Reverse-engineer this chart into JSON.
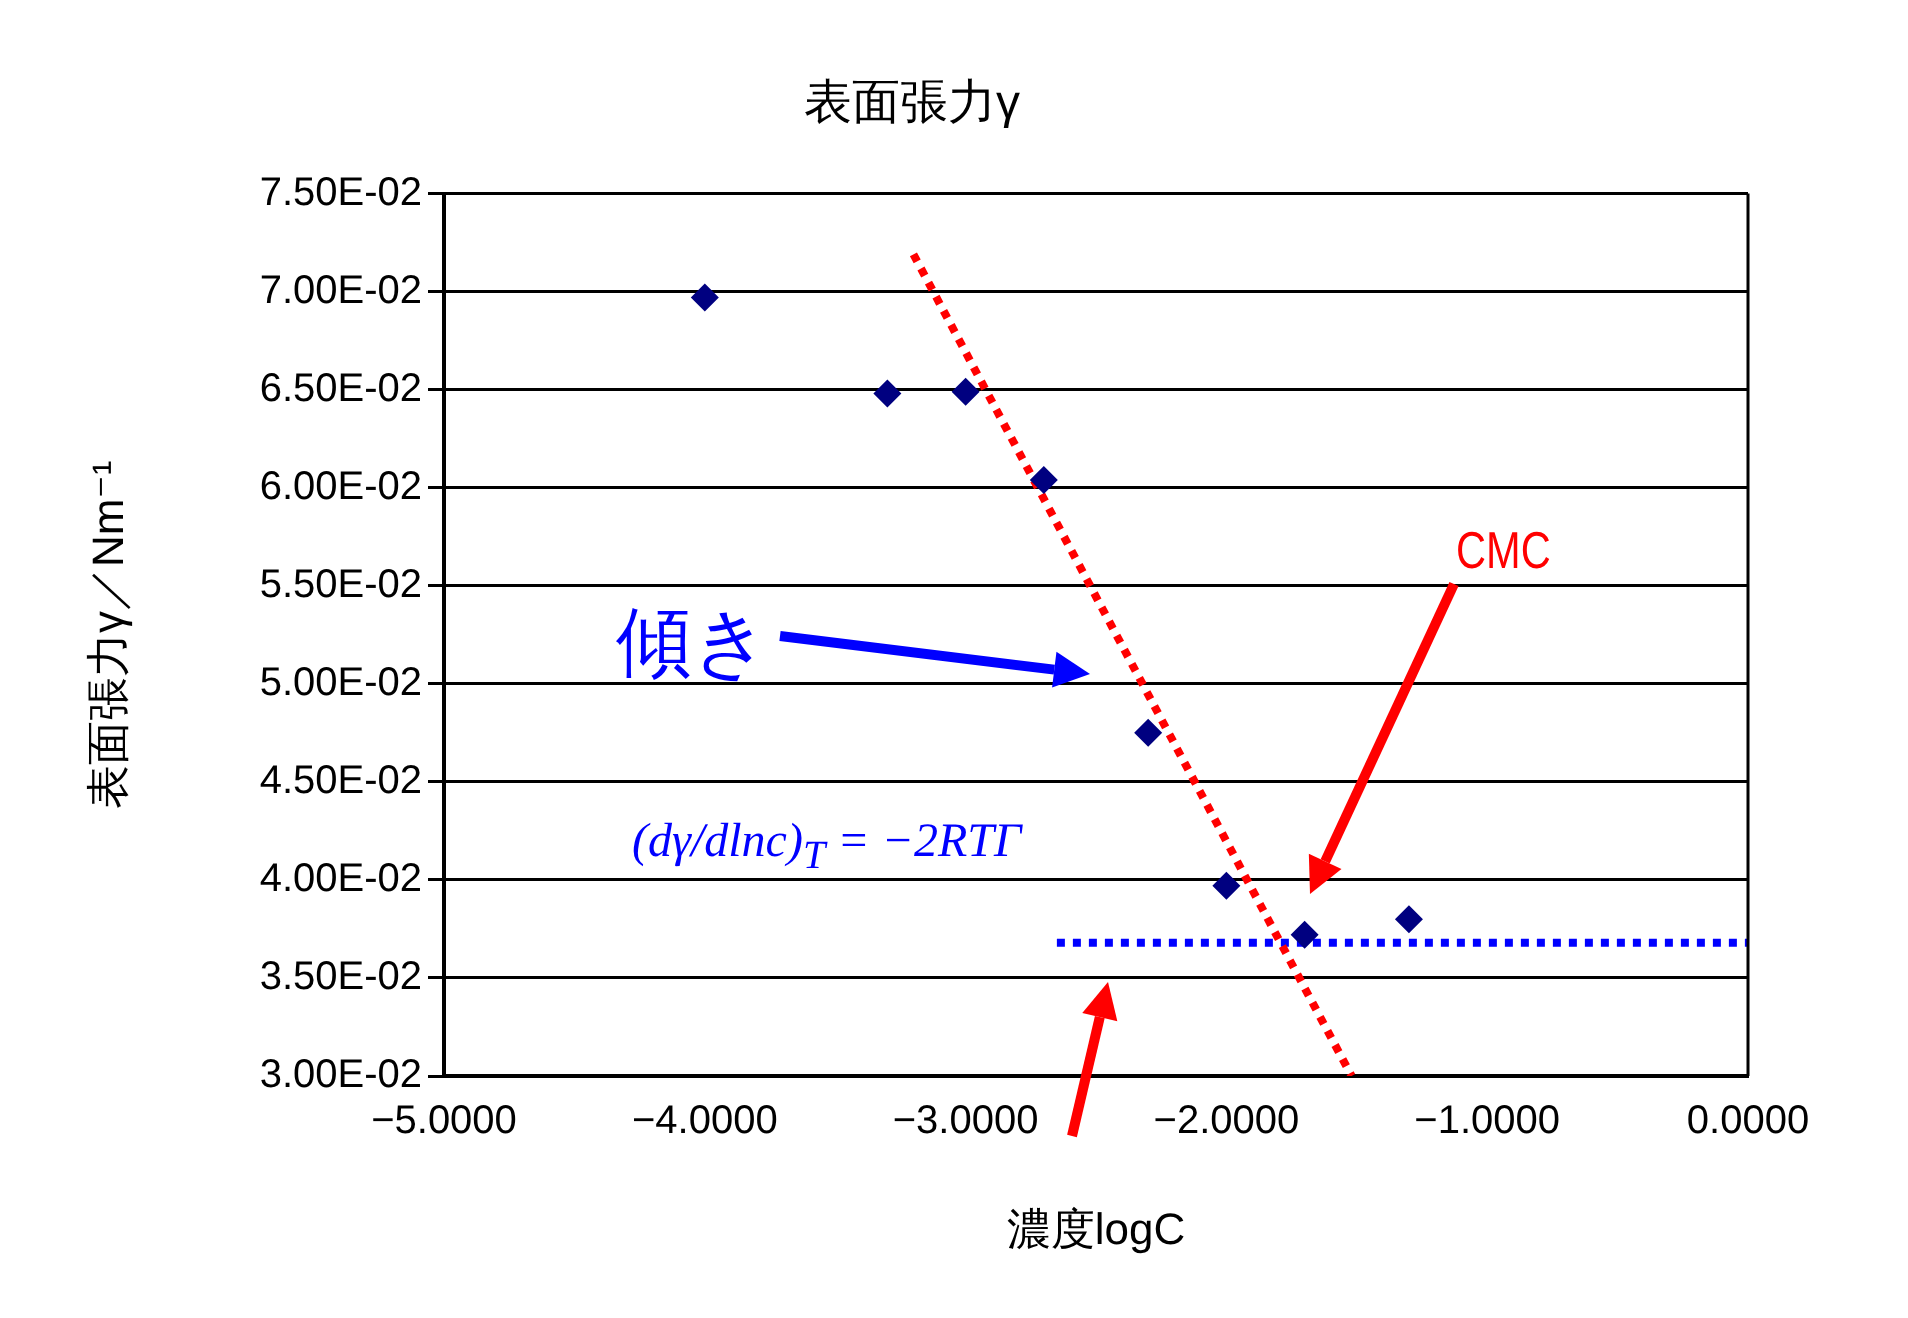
{
  "chart_data": {
    "type": "scatter",
    "title": "表面張力γ",
    "xlabel": "濃度logC",
    "ylabel": "表面張力γ／Nm⁻¹",
    "xlim": [
      -5,
      0
    ],
    "xticks": [
      {
        "value": -5,
        "label": "−5.0000"
      },
      {
        "value": -4,
        "label": "−4.0000"
      },
      {
        "value": -3,
        "label": "−3.0000"
      },
      {
        "value": -2,
        "label": "−2.0000"
      },
      {
        "value": -1,
        "label": "−1.0000"
      },
      {
        "value": 0,
        "label": "0.0000"
      }
    ],
    "ylim": [
      0.03,
      0.075
    ],
    "yticks": [
      {
        "value": 0.03,
        "label": "3.00E-02"
      },
      {
        "value": 0.035,
        "label": "3.50E-02"
      },
      {
        "value": 0.04,
        "label": "4.00E-02"
      },
      {
        "value": 0.045,
        "label": "4.50E-02"
      },
      {
        "value": 0.05,
        "label": "5.00E-02"
      },
      {
        "value": 0.055,
        "label": "5.50E-02"
      },
      {
        "value": 0.06,
        "label": "6.00E-02"
      },
      {
        "value": 0.065,
        "label": "6.50E-02"
      },
      {
        "value": 0.07,
        "label": "7.00E-02"
      },
      {
        "value": 0.075,
        "label": "7.50E-02"
      }
    ],
    "grid": "y",
    "legend": false,
    "marker": "diamond",
    "series": [
      {
        "type": "scatter",
        "color": "#000080",
        "x": [
          -4.0,
          -3.3,
          -3.0,
          -2.7,
          -2.3,
          -2.0,
          -1.7,
          -1.3
        ],
        "values": [
          0.0697,
          0.0648,
          0.0649,
          0.0604,
          0.0475,
          0.0397,
          0.0372,
          0.038
        ]
      },
      {
        "type": "line",
        "color": "#ff0000",
        "line_style": "dotted",
        "marker": "none",
        "x": [
          -3.2,
          -1.52
        ],
        "values": [
          0.0719,
          0.03
        ]
      },
      {
        "type": "line",
        "color": "#0000ff",
        "line_style": "dotted",
        "marker": "none",
        "x": [
          -2.65,
          0
        ],
        "values": [
          0.0368,
          0.0368
        ]
      }
    ],
    "annotations": [
      "傾き",
      "(dγ/dlnc)$_{T}$ = −2RTΓ",
      "CMC"
    ]
  }
}
